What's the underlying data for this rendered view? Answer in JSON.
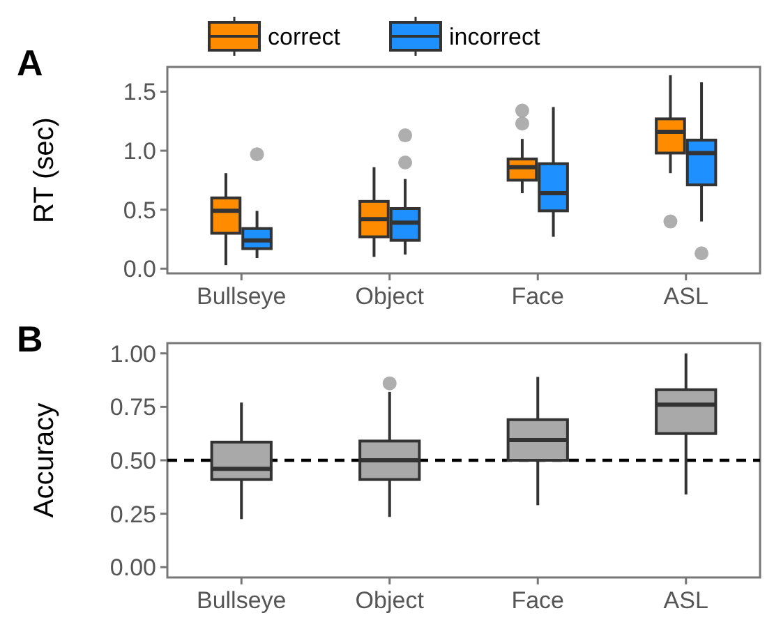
{
  "chart_data": [
    {
      "type": "box",
      "title": "A",
      "ylabel": "RT (sec)",
      "categories": [
        "Bullseye",
        "Object",
        "Face",
        "ASL"
      ],
      "ylim": [
        -0.04,
        1.71
      ],
      "yticks": [
        {
          "value": 0,
          "label": "0.0"
        },
        0.5,
        {
          "value": 1,
          "label": "1.0"
        },
        1.5
      ],
      "grid": false,
      "legend": "top left",
      "series": [
        {
          "name": "correct",
          "color": "#ff8c00",
          "boxes": [
            {
              "low": 0.03,
              "q1": 0.3,
              "median": 0.49,
              "q3": 0.6,
              "high": 0.81
            },
            {
              "low": 0.1,
              "q1": 0.27,
              "median": 0.42,
              "q3": 0.57,
              "high": 0.86
            },
            {
              "low": 0.64,
              "q1": 0.75,
              "median": 0.86,
              "q3": 0.93,
              "high": 1.1,
              "outliers": [
                1.23,
                1.34
              ]
            },
            {
              "low": 0.81,
              "q1": 0.98,
              "median": 1.16,
              "q3": 1.27,
              "high": 1.64,
              "outliers": [
                0.4
              ]
            }
          ]
        },
        {
          "name": "incorrect",
          "color": "#1e90ff",
          "boxes": [
            {
              "low": 0.09,
              "q1": 0.17,
              "median": 0.24,
              "q3": 0.34,
              "high": 0.49,
              "outliers": [
                0.97
              ]
            },
            {
              "low": 0.12,
              "q1": 0.24,
              "median": 0.39,
              "q3": 0.51,
              "high": 0.76,
              "outliers": [
                0.9,
                1.13
              ]
            },
            {
              "low": 0.27,
              "q1": 0.49,
              "median": 0.64,
              "q3": 0.89,
              "high": 1.37
            },
            {
              "low": 0.4,
              "q1": 0.71,
              "median": 0.98,
              "q3": 1.09,
              "high": 1.58,
              "outliers": [
                0.13
              ]
            }
          ]
        }
      ]
    },
    {
      "type": "box",
      "title": "B",
      "ylabel": "Accuracy",
      "categories": [
        "Bullseye",
        "Object",
        "Face",
        "ASL"
      ],
      "ylim": [
        -0.048,
        1.048
      ],
      "yticks": [
        {
          "value": 0,
          "label": "0.00"
        },
        0.25,
        {
          "value": 0.5,
          "label": "0.50"
        },
        0.75,
        {
          "value": 1,
          "label": "1.00"
        }
      ],
      "grid": false,
      "series": [
        {
          "color": "#a9a9a9",
          "boxes": [
            {
              "low": 0.225,
              "q1": 0.41,
              "median": 0.46,
              "q3": 0.585,
              "high": 0.77
            },
            {
              "low": 0.235,
              "q1": 0.41,
              "median": 0.5,
              "q3": 0.59,
              "high": 0.82,
              "outliers": [
                0.86
              ]
            },
            {
              "low": 0.29,
              "q1": 0.5,
              "median": 0.595,
              "q3": 0.69,
              "high": 0.89
            },
            {
              "low": 0.34,
              "q1": 0.625,
              "median": 0.76,
              "q3": 0.83,
              "high": 1.0
            }
          ]
        }
      ],
      "ref_lines": [
        {
          "axis": "y",
          "value": 0.5,
          "color": "#000000",
          "line_style": "dashed"
        }
      ]
    }
  ]
}
